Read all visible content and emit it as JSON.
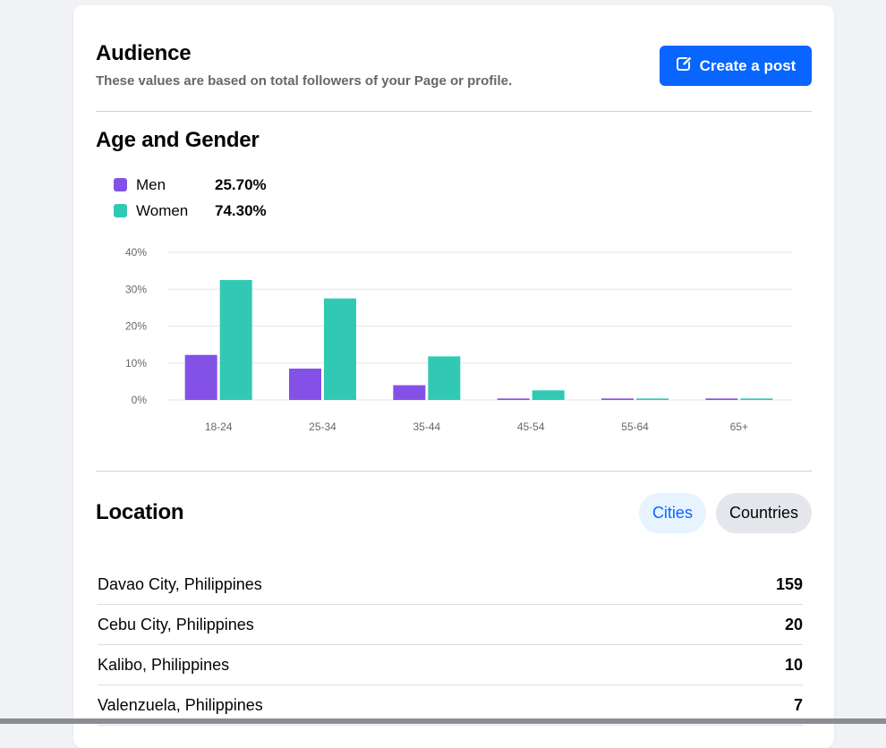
{
  "audience": {
    "title": "Audience",
    "subtitle": "These values are based on total followers of your Page or profile.",
    "create_post_label": "Create a post"
  },
  "age_gender": {
    "title": "Age and Gender",
    "legend": [
      {
        "name": "Men",
        "value": "25.70%",
        "color": "#8451e6"
      },
      {
        "name": "Women",
        "value": "74.30%",
        "color": "#31c9b3"
      }
    ]
  },
  "chart_data": {
    "type": "bar",
    "categories": [
      "18-24",
      "25-34",
      "35-44",
      "45-54",
      "55-64",
      "65+"
    ],
    "series": [
      {
        "name": "Men",
        "values": [
          12.2,
          8.5,
          4.0,
          0.4,
          0.4,
          0.4
        ],
        "color": "#8451e6"
      },
      {
        "name": "Women",
        "values": [
          32.5,
          27.5,
          11.8,
          2.6,
          0.4,
          0.4
        ],
        "color": "#31c9b3"
      }
    ],
    "ylim": [
      0,
      40
    ],
    "yticks": [
      "0%",
      "10%",
      "20%",
      "30%",
      "40%"
    ],
    "grid": true
  },
  "location": {
    "title": "Location",
    "tabs": [
      {
        "label": "Cities",
        "active": true
      },
      {
        "label": "Countries",
        "active": false
      }
    ],
    "rows": [
      {
        "name": "Davao City, Philippines",
        "count": "159"
      },
      {
        "name": "Cebu City, Philippines",
        "count": "20"
      },
      {
        "name": "Kalibo, Philippines",
        "count": "10"
      },
      {
        "name": "Valenzuela, Philippines",
        "count": "7"
      }
    ]
  },
  "colors": {
    "accent": "#0866ff",
    "men": "#8451e6",
    "women": "#31c9b3"
  }
}
